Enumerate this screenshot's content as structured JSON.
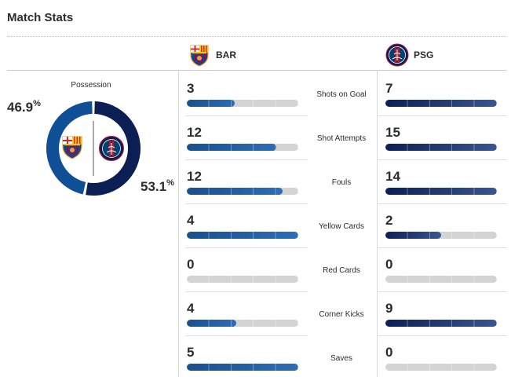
{
  "header": {
    "title": "Match Stats"
  },
  "teams": {
    "home": {
      "abbr": "BAR",
      "logo": "fc-barcelona-crest-icon",
      "color": "#1a4f8c"
    },
    "away": {
      "abbr": "PSG",
      "logo": "psg-crest-icon",
      "color": "#0b1f55"
    }
  },
  "possession": {
    "label": "Possession",
    "home_pct": "46.9",
    "away_pct": "53.1",
    "pct_suffix": "%",
    "home_fraction": 0.469,
    "away_fraction": 0.531
  },
  "stats": [
    {
      "label": "Shots on Goal",
      "home": "3",
      "away": "7",
      "home_fill": 0.43,
      "away_fill": 1.0
    },
    {
      "label": "Shot Attempts",
      "home": "12",
      "away": "15",
      "home_fill": 0.8,
      "away_fill": 1.0
    },
    {
      "label": "Fouls",
      "home": "12",
      "away": "14",
      "home_fill": 0.857,
      "away_fill": 1.0
    },
    {
      "label": "Yellow Cards",
      "home": "4",
      "away": "2",
      "home_fill": 1.0,
      "away_fill": 0.5
    },
    {
      "label": "Red Cards",
      "home": "0",
      "away": "0",
      "home_fill": 0,
      "away_fill": 0
    },
    {
      "label": "Corner Kicks",
      "home": "4",
      "away": "9",
      "home_fill": 0.444,
      "away_fill": 1.0
    },
    {
      "label": "Saves",
      "home": "5",
      "away": "0",
      "home_fill": 1.0,
      "away_fill": 0
    }
  ]
}
